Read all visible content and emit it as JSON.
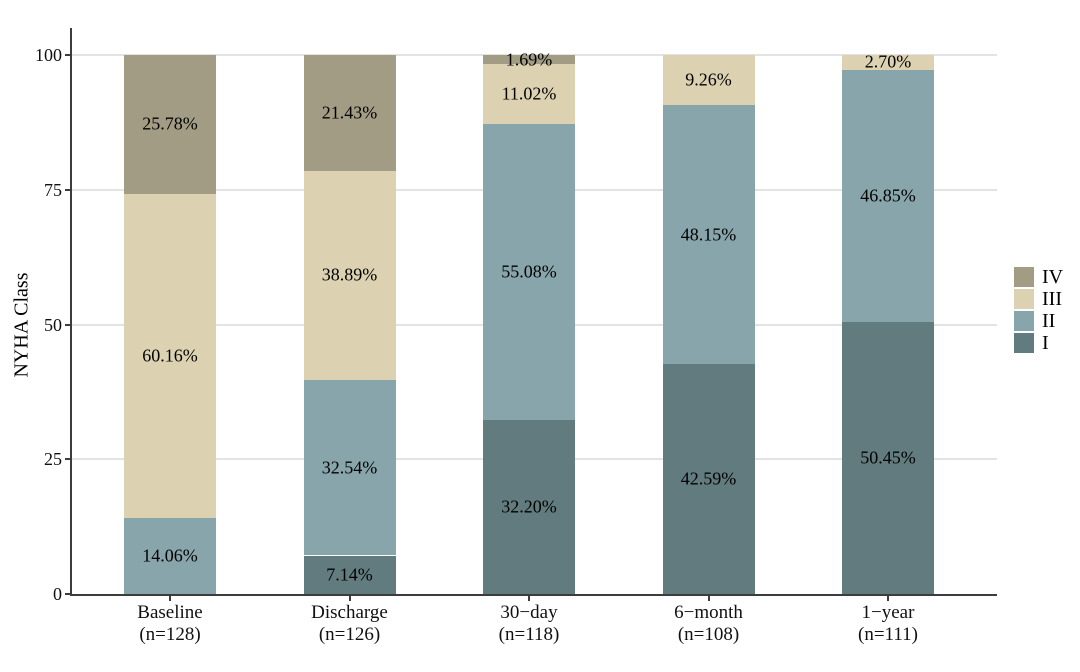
{
  "chart_data": {
    "type": "bar",
    "stacked": true,
    "title": "",
    "ylabel": "NYHA Class",
    "xlabel": "",
    "ylim": [
      0,
      100
    ],
    "yticks": [
      0,
      25,
      50,
      75,
      100
    ],
    "grid": true,
    "legend_position": "right",
    "legend_title": "",
    "legend_order": [
      "IV",
      "III",
      "II",
      "I"
    ],
    "categories": [
      [
        "Baseline",
        "(n=128)"
      ],
      [
        "Discharge",
        "(n=126)"
      ],
      [
        "30−day",
        "(n=118)"
      ],
      [
        "6−month",
        "(n=108)"
      ],
      [
        "1−year",
        "(n=111)"
      ]
    ],
    "series": [
      {
        "name": "I",
        "color": "#627B7E",
        "values": [
          0,
          7.14,
          32.2,
          42.59,
          50.45
        ],
        "labels": [
          "",
          "7.14%",
          "32.20%",
          "42.59%",
          "50.45%"
        ]
      },
      {
        "name": "II",
        "color": "#87A5AB",
        "values": [
          14.06,
          32.54,
          55.08,
          48.15,
          46.85
        ],
        "labels": [
          "14.06%",
          "32.54%",
          "55.08%",
          "48.15%",
          "46.85%"
        ]
      },
      {
        "name": "III",
        "color": "#DCD2B2",
        "values": [
          60.16,
          38.89,
          11.02,
          9.26,
          2.7
        ],
        "labels": [
          "60.16%",
          "38.89%",
          "11.02%",
          "9.26%",
          "2.70%"
        ]
      },
      {
        "name": "IV",
        "color": "#A39C84",
        "values": [
          25.78,
          21.43,
          1.69,
          0,
          0
        ],
        "labels": [
          "25.78%",
          "21.43%",
          "1.69%",
          "",
          ""
        ]
      }
    ],
    "colors": {
      "grid": "#E3E3E3",
      "axis": "#3C3C3C",
      "text": "#000000"
    }
  }
}
